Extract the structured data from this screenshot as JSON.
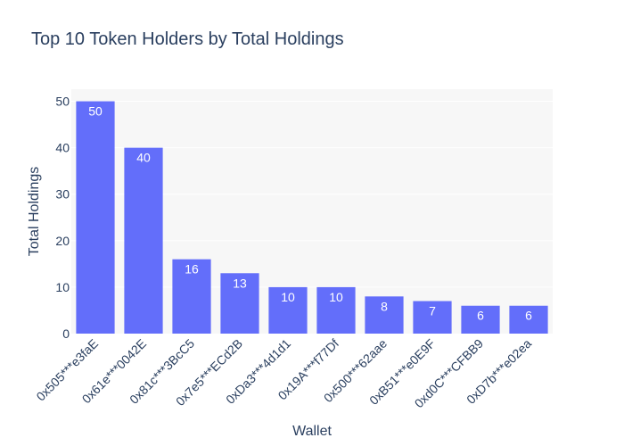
{
  "chart_data": {
    "type": "bar",
    "title": "Top 10 Token Holders by Total Holdings",
    "xlabel": "Wallet",
    "ylabel": "Total Holdings",
    "categories": [
      "0x505***e3faE",
      "0x61e***0042E",
      "0x81c***3BcC5",
      "0x7e5***ECd2B",
      "0xDa3***4d1d1",
      "0x19A***f77Df",
      "0x500***62aae",
      "0xB51***e0E9F",
      "0xd0C***CFBB9",
      "0xD7b***e02ea"
    ],
    "values": [
      50,
      40,
      16,
      13,
      10,
      10,
      8,
      7,
      6,
      6
    ],
    "ylim": [
      0,
      52.6
    ],
    "yticks": [
      0,
      10,
      20,
      30,
      40,
      50
    ],
    "grid": true,
    "bar_color": "#636efa",
    "plot_background": "#f7f7f7",
    "text_color": "#2a3f5f",
    "bar_label_color": "#ffffff"
  }
}
